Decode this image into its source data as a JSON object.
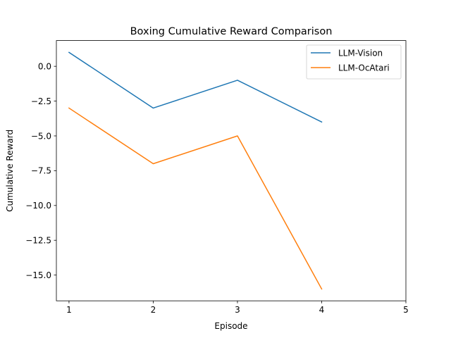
{
  "chart_data": {
    "type": "line",
    "title": "Boxing Cumulative Reward Comparison",
    "xlabel": "Episode",
    "ylabel": "Cumulative Reward",
    "x": [
      1,
      2,
      3,
      4
    ],
    "xlim": [
      0.85,
      5.0
    ],
    "ylim": [
      -16.85,
      1.85
    ],
    "xticks": [
      1,
      2,
      3,
      4,
      5
    ],
    "xtick_labels": [
      "1",
      "2",
      "3",
      "4",
      "5"
    ],
    "yticks": [
      0.0,
      -2.5,
      -5.0,
      -7.5,
      -10.0,
      -12.5,
      -15.0
    ],
    "ytick_labels": [
      "0.0",
      "−2.5",
      "−5.0",
      "−7.5",
      "−10.0",
      "−12.5",
      "−15.0"
    ],
    "grid": false,
    "legend_position": "top-right",
    "series": [
      {
        "name": "LLM-Vision",
        "color": "#1f77b4",
        "values": [
          1,
          -3,
          -1,
          -4
        ]
      },
      {
        "name": "LLM-OcAtari",
        "color": "#ff7f0e",
        "values": [
          -3,
          -7,
          -5,
          -16
        ]
      }
    ]
  }
}
